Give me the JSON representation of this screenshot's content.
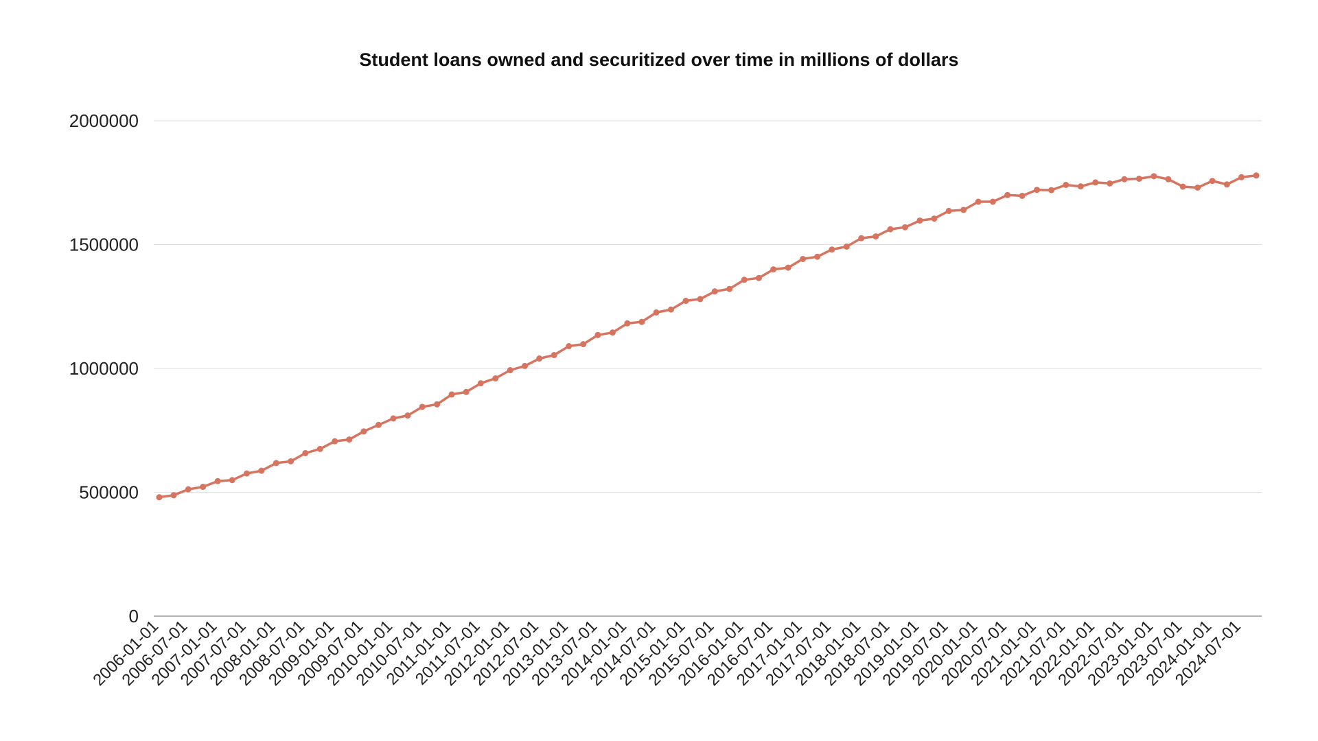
{
  "chart_data": {
    "type": "line",
    "title": "Student loans owned and securitized over time in millions of dollars",
    "xlabel": "",
    "ylabel": "",
    "ylim": [
      0,
      2000000
    ],
    "yticks": [
      "0",
      "500000",
      "1000000",
      "1500000",
      "2000000"
    ],
    "xtick_labels": [
      "2006-01-01",
      "2006-07-01",
      "2007-01-01",
      "2007-07-01",
      "2008-01-01",
      "2008-07-01",
      "2009-01-01",
      "2009-07-01",
      "2010-01-01",
      "2010-07-01",
      "2011-01-01",
      "2011-07-01",
      "2012-01-01",
      "2012-07-01",
      "2013-01-01",
      "2013-07-01",
      "2014-01-01",
      "2014-07-01",
      "2015-01-01",
      "2015-07-01",
      "2016-01-01",
      "2016-07-01",
      "2017-01-01",
      "2017-07-01",
      "2018-01-01",
      "2018-07-01",
      "2019-01-01",
      "2019-07-01",
      "2020-01-01",
      "2020-07-01",
      "2021-01-01",
      "2021-07-01",
      "2022-01-01",
      "2022-07-01",
      "2023-01-01",
      "2023-07-01",
      "2024-01-01",
      "2024-07-01"
    ],
    "grid": true,
    "legend": "none",
    "color": "#D6745F",
    "x": [
      "2006-01-01",
      "2006-04-01",
      "2006-07-01",
      "2006-10-01",
      "2007-01-01",
      "2007-04-01",
      "2007-07-01",
      "2007-10-01",
      "2008-01-01",
      "2008-04-01",
      "2008-07-01",
      "2008-10-01",
      "2009-01-01",
      "2009-04-01",
      "2009-07-01",
      "2009-10-01",
      "2010-01-01",
      "2010-04-01",
      "2010-07-01",
      "2010-10-01",
      "2011-01-01",
      "2011-04-01",
      "2011-07-01",
      "2011-10-01",
      "2012-01-01",
      "2012-04-01",
      "2012-07-01",
      "2012-10-01",
      "2013-01-01",
      "2013-04-01",
      "2013-07-01",
      "2013-10-01",
      "2014-01-01",
      "2014-04-01",
      "2014-07-01",
      "2014-10-01",
      "2015-01-01",
      "2015-04-01",
      "2015-07-01",
      "2015-10-01",
      "2016-01-01",
      "2016-04-01",
      "2016-07-01",
      "2016-10-01",
      "2017-01-01",
      "2017-04-01",
      "2017-07-01",
      "2017-10-01",
      "2018-01-01",
      "2018-04-01",
      "2018-07-01",
      "2018-10-01",
      "2019-01-01",
      "2019-04-01",
      "2019-07-01",
      "2019-10-01",
      "2020-01-01",
      "2020-04-01",
      "2020-07-01",
      "2020-10-01",
      "2021-01-01",
      "2021-04-01",
      "2021-07-01",
      "2021-10-01",
      "2022-01-01",
      "2022-04-01",
      "2022-07-01",
      "2022-10-01",
      "2023-01-01",
      "2023-04-01",
      "2023-07-01",
      "2023-10-01",
      "2024-01-01",
      "2024-04-01",
      "2024-07-01",
      "2024-10-01"
    ],
    "values": [
      480000,
      488000,
      512000,
      522000,
      545000,
      549000,
      576000,
      587000,
      618000,
      625000,
      658000,
      675000,
      706000,
      713000,
      746000,
      772000,
      798000,
      810000,
      845000,
      855000,
      895000,
      905000,
      940000,
      960000,
      993000,
      1010000,
      1040000,
      1054000,
      1090000,
      1098000,
      1135000,
      1145000,
      1182000,
      1188000,
      1226000,
      1238000,
      1273000,
      1280000,
      1311000,
      1321000,
      1358000,
      1365000,
      1400000,
      1407000,
      1442000,
      1451000,
      1480000,
      1492000,
      1526000,
      1533000,
      1562000,
      1570000,
      1597000,
      1605000,
      1636000,
      1640000,
      1673000,
      1673000,
      1700000,
      1697000,
      1721000,
      1720000,
      1741000,
      1735000,
      1751000,
      1747000,
      1764000,
      1766000,
      1776000,
      1764000,
      1734000,
      1730000,
      1757000,
      1743000,
      1772000,
      1779000
    ]
  }
}
